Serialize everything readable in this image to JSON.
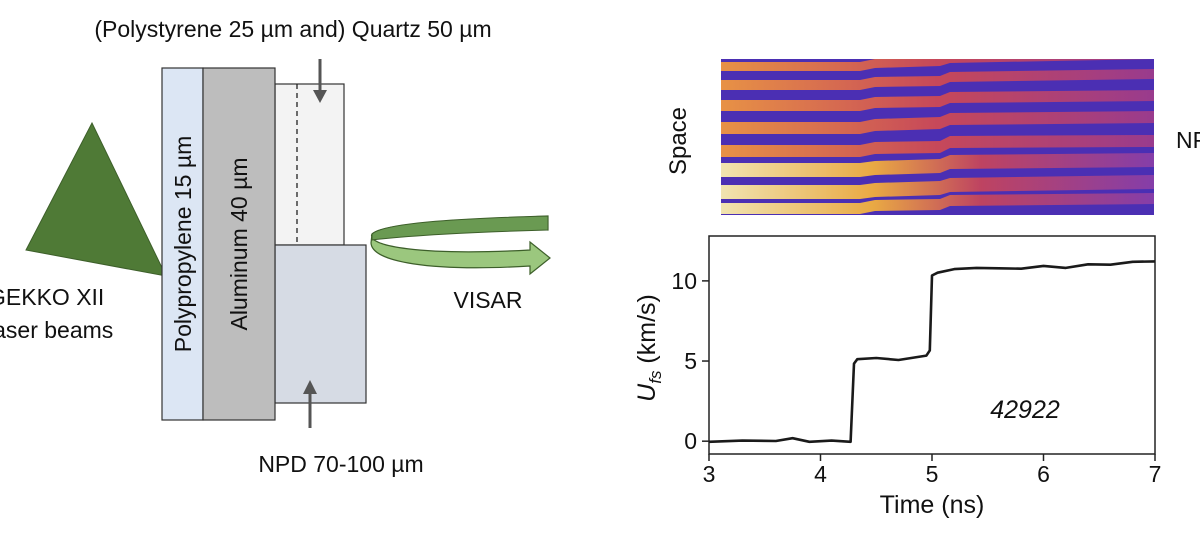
{
  "left_panel": {
    "top_label": "(Polystyrene 25 µm and) Quartz 50 µm",
    "polypropylene_label": "Polypropylene 15 µm",
    "aluminum_label": "Aluminum 40 µm",
    "laser_label_line1": "GEKKO XII",
    "laser_label_line2": "laser beams",
    "visar_label": "VISAR",
    "npd_label": "NPD 70-100 µm"
  },
  "right_panel": {
    "streak_y_label": "Space",
    "streak_side_label": "NPD",
    "y_label_main": "U",
    "y_label_sub": "fs",
    "y_label_unit": " (km/s)",
    "x_label": "Time (ns)",
    "annotation": "42922"
  },
  "colors": {
    "laser": "#4f7a36",
    "polypropylene": "#dce6f4",
    "aluminum": "#bdbdbd",
    "quartz": "#f3f3f3",
    "npd": "#d6dbe4",
    "visar_arrow": "#9bc77e"
  },
  "chart_data": {
    "type": "line",
    "title": "",
    "xlabel": "Time (ns)",
    "ylabel": "U_fs (km/s)",
    "xlim": [
      3,
      7
    ],
    "ylim": [
      -0.8,
      12.8
    ],
    "xticks": [
      3,
      4,
      5,
      6,
      7
    ],
    "yticks": [
      0,
      5,
      10
    ],
    "series": [
      {
        "name": "42922",
        "x": [
          3.0,
          3.3,
          3.6,
          3.75,
          3.9,
          4.1,
          4.27,
          4.3,
          4.33,
          4.5,
          4.7,
          4.95,
          4.98,
          5.0,
          5.05,
          5.2,
          5.4,
          5.6,
          5.8,
          6.0,
          6.2,
          6.4,
          6.6,
          6.8,
          7.0
        ],
        "y": [
          0.0,
          0.0,
          0.05,
          0.15,
          0.0,
          0.0,
          0.0,
          4.8,
          5.15,
          5.15,
          5.1,
          5.3,
          5.7,
          10.3,
          10.55,
          10.7,
          10.85,
          10.75,
          10.8,
          10.9,
          10.85,
          11.0,
          11.05,
          11.15,
          11.25
        ]
      }
    ]
  }
}
